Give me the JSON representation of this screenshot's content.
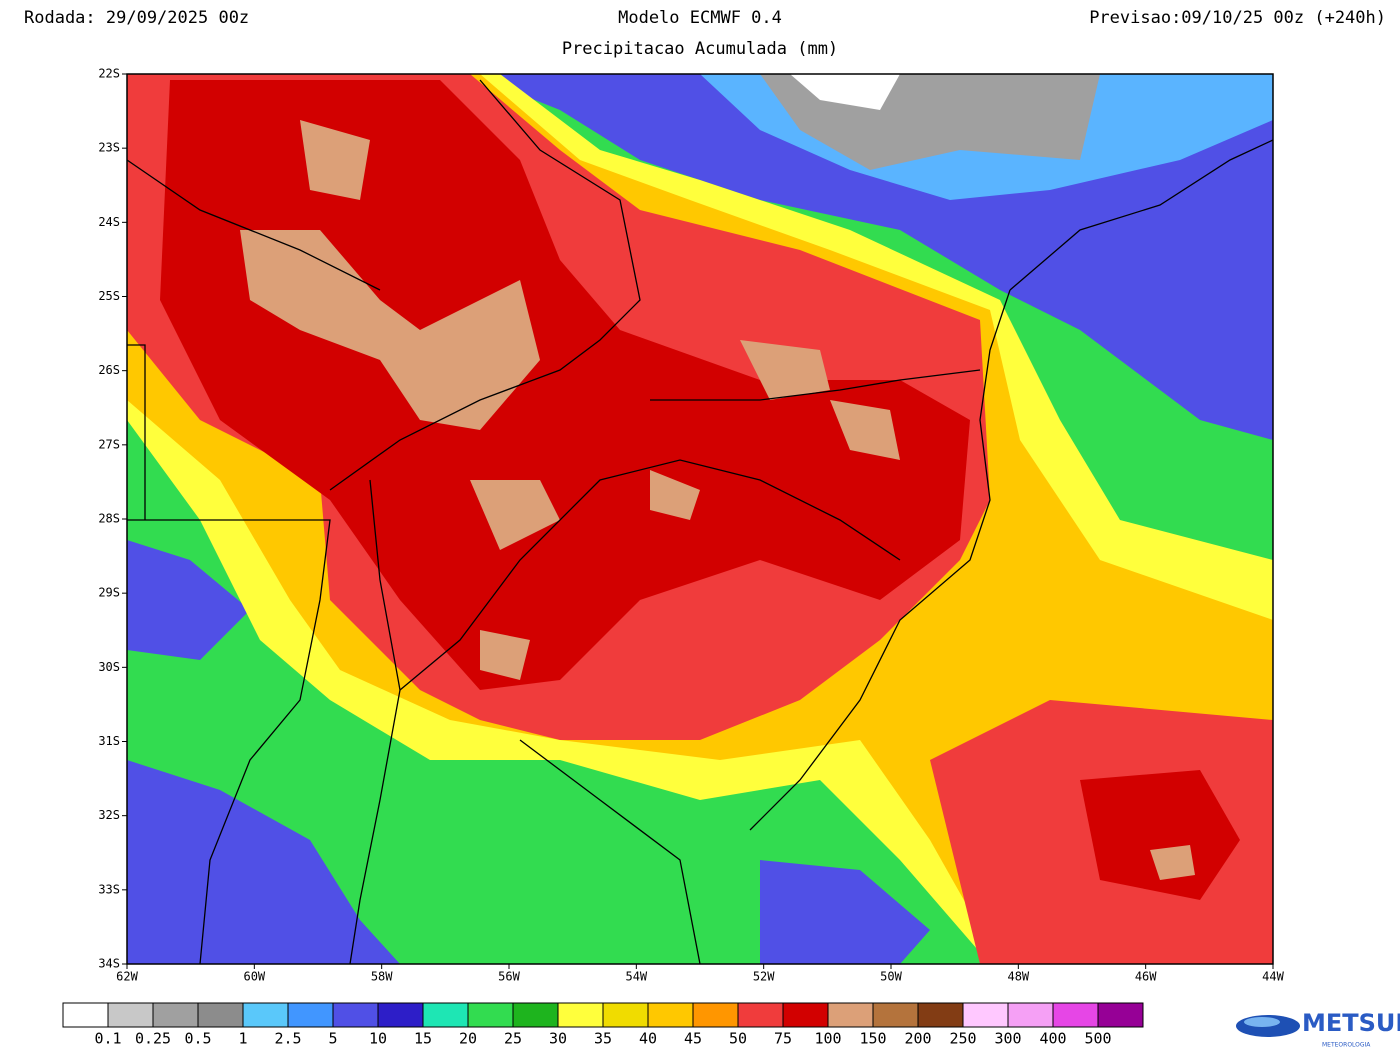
{
  "header": {
    "run": "Rodada: 29/09/2025 00z",
    "model": "Modelo ECMWF 0.4",
    "forecast": "Previsao:09/10/25 00z (+240h)",
    "title": "Precipitacao Acumulada (mm)"
  },
  "map": {
    "lat_labels": [
      "22S",
      "23S",
      "24S",
      "25S",
      "26S",
      "27S",
      "28S",
      "29S",
      "30S",
      "31S",
      "32S",
      "33S",
      "34S"
    ],
    "lon_labels": [
      "62W",
      "60W",
      "58W",
      "56W",
      "54W",
      "52W",
      "50W",
      "48W",
      "46W",
      "44W"
    ]
  },
  "colorbar": {
    "colors": [
      "#ffffff",
      "#c8c8c8",
      "#a0a0a0",
      "#8c8c8c",
      "#5ac8fa",
      "#4196ff",
      "#5050e6",
      "#2d1ec8",
      "#1ee6b4",
      "#32dc50",
      "#1eb41e",
      "#ffff3c",
      "#f0dc00",
      "#ffc800",
      "#ff9600",
      "#f03c3c",
      "#d20000",
      "#dca078",
      "#b4733c",
      "#823c14",
      "#ffc8ff",
      "#f5a0f5",
      "#e646e6",
      "#960096"
    ],
    "labels": [
      "0.1",
      "0.25",
      "0.5",
      "1",
      "2.5",
      "5",
      "10",
      "15",
      "20",
      "25",
      "30",
      "35",
      "40",
      "45",
      "50",
      "75",
      "100",
      "150",
      "200",
      "250",
      "300",
      "400",
      "500"
    ]
  },
  "logo": {
    "name": "METSUL",
    "tagline": "METEOROLOGIA"
  }
}
